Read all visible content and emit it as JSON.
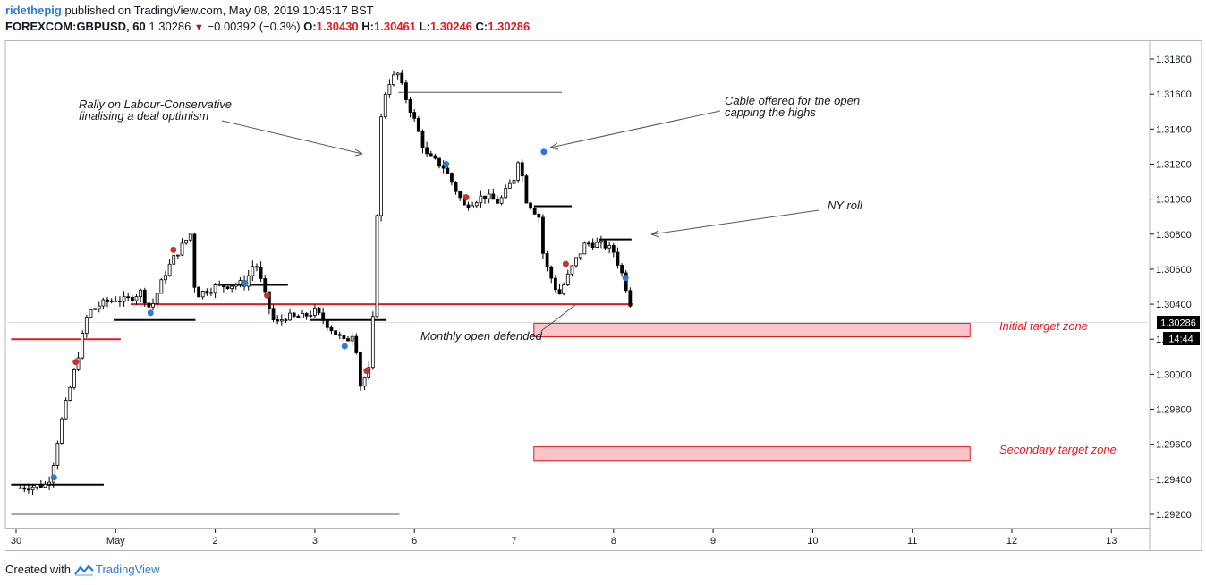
{
  "header": {
    "author": "ridethepig",
    "published_text": "published on TradingView.com, May 08, 2019 10:45:17 BST",
    "symbol": "FOREXCOM:GBPUSD, 60",
    "last": "1.30286",
    "change": "−0.00392 (−0.3%)",
    "open_label": "O:",
    "open": "1.30430",
    "high_label": "H:",
    "high": "1.30461",
    "low_label": "L:",
    "low": "1.30246",
    "close_label": "C:",
    "close": "1.30286"
  },
  "footer": {
    "created_with": "Created with",
    "brand": "TradingView"
  },
  "colors": {
    "up": "#000000",
    "down": "#000000",
    "accent_red": "#e11b22",
    "zone_fill": "#f9c5c8",
    "blue_dot": "#2e7bd6",
    "red_dot": "#c8302c"
  },
  "chart_data": {
    "type": "candlestick",
    "symbol": "GBPUSD",
    "timeframe": "60",
    "x_ticks": [
      "30",
      "May",
      "2",
      "3",
      "6",
      "7",
      "8",
      "9",
      "10",
      "11",
      "12",
      "13"
    ],
    "y_ticks": [
      "1.31800",
      "1.31600",
      "1.31400",
      "1.31200",
      "1.31000",
      "1.30800",
      "1.30600",
      "1.30400",
      "1.30200",
      "1.30000",
      "1.29800",
      "1.29600",
      "1.29400",
      "1.29200"
    ],
    "ylim": [
      1.291,
      1.3192
    ],
    "price_label": "1.30286",
    "countdown_label": "14:44",
    "anchors": [
      [
        0.0,
        1.2935
      ],
      [
        0.3,
        1.2937
      ],
      [
        0.35,
        1.2942
      ],
      [
        0.45,
        1.2972
      ],
      [
        0.6,
        1.3005
      ],
      [
        0.72,
        1.3035
      ],
      [
        0.85,
        1.304
      ],
      [
        1.0,
        1.3043
      ],
      [
        1.1,
        1.3042
      ],
      [
        1.25,
        1.3047
      ],
      [
        1.35,
        1.3037
      ],
      [
        1.5,
        1.3058
      ],
      [
        1.6,
        1.3068
      ],
      [
        1.75,
        1.308
      ],
      [
        1.8,
        1.3045
      ],
      [
        2.0,
        1.305
      ],
      [
        2.3,
        1.3052
      ],
      [
        2.4,
        1.3065
      ],
      [
        2.5,
        1.3045
      ],
      [
        2.6,
        1.3028
      ],
      [
        2.7,
        1.3033
      ],
      [
        2.85,
        1.3032
      ],
      [
        3.0,
        1.3036
      ],
      [
        3.3,
        1.3018
      ],
      [
        3.4,
        1.3025
      ],
      [
        3.45,
        1.2993
      ],
      [
        3.55,
        1.3003
      ],
      [
        3.6,
        1.3045
      ],
      [
        3.65,
        1.314
      ],
      [
        3.72,
        1.3165
      ],
      [
        3.83,
        1.3172
      ],
      [
        3.9,
        1.316
      ],
      [
        4.0,
        1.3145
      ],
      [
        4.12,
        1.3125
      ],
      [
        4.3,
        1.3118
      ],
      [
        4.5,
        1.3096
      ],
      [
        4.7,
        1.3102
      ],
      [
        4.85,
        1.3098
      ],
      [
        5.0,
        1.3112
      ],
      [
        5.05,
        1.3125
      ],
      [
        5.12,
        1.31
      ],
      [
        5.25,
        1.309
      ],
      [
        5.3,
        1.3065
      ],
      [
        5.45,
        1.3045
      ],
      [
        5.6,
        1.3063
      ],
      [
        5.72,
        1.3075
      ],
      [
        5.9,
        1.3074
      ],
      [
        6.0,
        1.307
      ],
      [
        6.1,
        1.3055
      ],
      [
        6.17,
        1.304
      ],
      [
        6.2,
        1.30286
      ]
    ],
    "horizontal_levels": [
      {
        "price": 1.3161,
        "x0": 3.84,
        "x1": 5.48,
        "color": "#555555",
        "width": 1
      },
      {
        "price": 1.3096,
        "x0": 5.2,
        "x1": 5.58,
        "color": "#000000",
        "width": 2
      },
      {
        "price": 1.3077,
        "x0": 5.85,
        "x1": 6.18,
        "color": "#000000",
        "width": 2
      },
      {
        "price": 1.3051,
        "x0": 2.05,
        "x1": 2.73,
        "color": "#000000",
        "width": 2
      },
      {
        "price": 1.304,
        "x0": 1.15,
        "x1": 6.2,
        "color": "#e11b22",
        "width": 2
      },
      {
        "price": 1.3031,
        "x0": 0.98,
        "x1": 1.8,
        "color": "#000000",
        "width": 2
      },
      {
        "price": 1.3031,
        "x0": 2.95,
        "x1": 3.72,
        "color": "#000000",
        "width": 2
      },
      {
        "price": 1.302,
        "x0": -0.05,
        "x1": 1.05,
        "color": "#e11b22",
        "width": 2
      },
      {
        "price": 1.2937,
        "x0": -0.05,
        "x1": 0.88,
        "color": "#000000",
        "width": 2
      },
      {
        "price": 1.292,
        "x0": -0.05,
        "x1": 3.85,
        "color": "#555555",
        "width": 1
      }
    ],
    "zones": [
      {
        "name": "Initial target zone",
        "x0": 5.2,
        "x1": 9.58,
        "top": 1.30291,
        "bottom": 1.30214
      },
      {
        "name": "Secondary target zone",
        "x0": 5.2,
        "x1": 9.58,
        "top": 1.29585,
        "bottom": 1.29508
      }
    ],
    "annotations": [
      {
        "id": "rally",
        "lines": [
          "Rally on Labour-Conservative",
          "finalising a deal optimism"
        ]
      },
      {
        "id": "cable",
        "lines": [
          "Cable offered for the open",
          "capping the highs"
        ]
      },
      {
        "id": "nyroll",
        "lines": [
          "NY roll"
        ]
      },
      {
        "id": "monthly",
        "lines": [
          "Monthly open defended"
        ]
      },
      {
        "id": "initial",
        "lines": [
          "Initial target zone"
        ]
      },
      {
        "id": "secondary",
        "lines": [
          "Secondary target zone"
        ]
      }
    ],
    "markers": [
      {
        "x": 0.38,
        "price": 1.2941,
        "color": "blue"
      },
      {
        "x": 0.6,
        "price": 1.3007,
        "color": "red"
      },
      {
        "x": 1.35,
        "price": 1.3035,
        "color": "blue"
      },
      {
        "x": 1.58,
        "price": 1.3071,
        "color": "red"
      },
      {
        "x": 2.3,
        "price": 1.3052,
        "color": "blue"
      },
      {
        "x": 2.52,
        "price": 1.3045,
        "color": "red"
      },
      {
        "x": 3.3,
        "price": 1.3016,
        "color": "blue"
      },
      {
        "x": 3.52,
        "price": 1.3002,
        "color": "red"
      },
      {
        "x": 4.32,
        "price": 1.312,
        "color": "blue"
      },
      {
        "x": 4.52,
        "price": 1.3101,
        "color": "red"
      },
      {
        "x": 5.3,
        "price": 1.3127,
        "color": "blue"
      },
      {
        "x": 5.52,
        "price": 1.3063,
        "color": "red"
      },
      {
        "x": 6.12,
        "price": 1.3055,
        "color": "blue"
      }
    ]
  }
}
